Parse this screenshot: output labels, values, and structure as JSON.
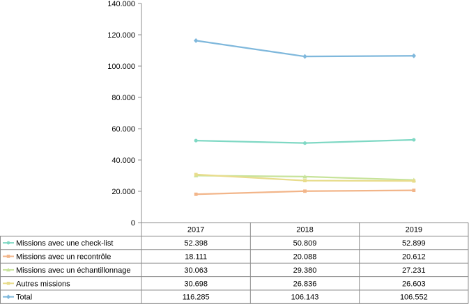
{
  "chart_data": {
    "type": "line",
    "categories": [
      "2017",
      "2018",
      "2019"
    ],
    "ylim": [
      0,
      140000
    ],
    "yticks": [
      "0",
      "20.000",
      "40.000",
      "60.000",
      "80.000",
      "100.000",
      "120.000",
      "140.000"
    ],
    "ytick_values": [
      0,
      20000,
      40000,
      60000,
      80000,
      100000,
      120000,
      140000
    ],
    "grid": false,
    "legend": "data-table-left",
    "series": [
      {
        "name": "Missions avec une check-list",
        "values": [
          52398,
          50809,
          52899
        ],
        "labels": [
          "52.398",
          "50.809",
          "52.899"
        ],
        "color": "#7fd8c4",
        "marker": "circle"
      },
      {
        "name": "Missions avec un recontrôle",
        "values": [
          18111,
          20088,
          20612
        ],
        "labels": [
          "18.111",
          "20.088",
          "20.612"
        ],
        "color": "#f2b589",
        "marker": "square"
      },
      {
        "name": "Missions avec un échantillonnage",
        "values": [
          30063,
          29380,
          27231
        ],
        "labels": [
          "30.063",
          "29.380",
          "27.231"
        ],
        "color": "#c7e39a",
        "marker": "triangle"
      },
      {
        "name": "Autres missions",
        "values": [
          30698,
          26836,
          26603
        ],
        "labels": [
          "30.698",
          "26.836",
          "26.603"
        ],
        "color": "#e8dc8c",
        "marker": "square"
      },
      {
        "name": "Total",
        "values": [
          116285,
          106143,
          106552
        ],
        "labels": [
          "116.285",
          "106.143",
          "106.552"
        ],
        "color": "#7fb8dc",
        "marker": "diamond"
      }
    ]
  }
}
